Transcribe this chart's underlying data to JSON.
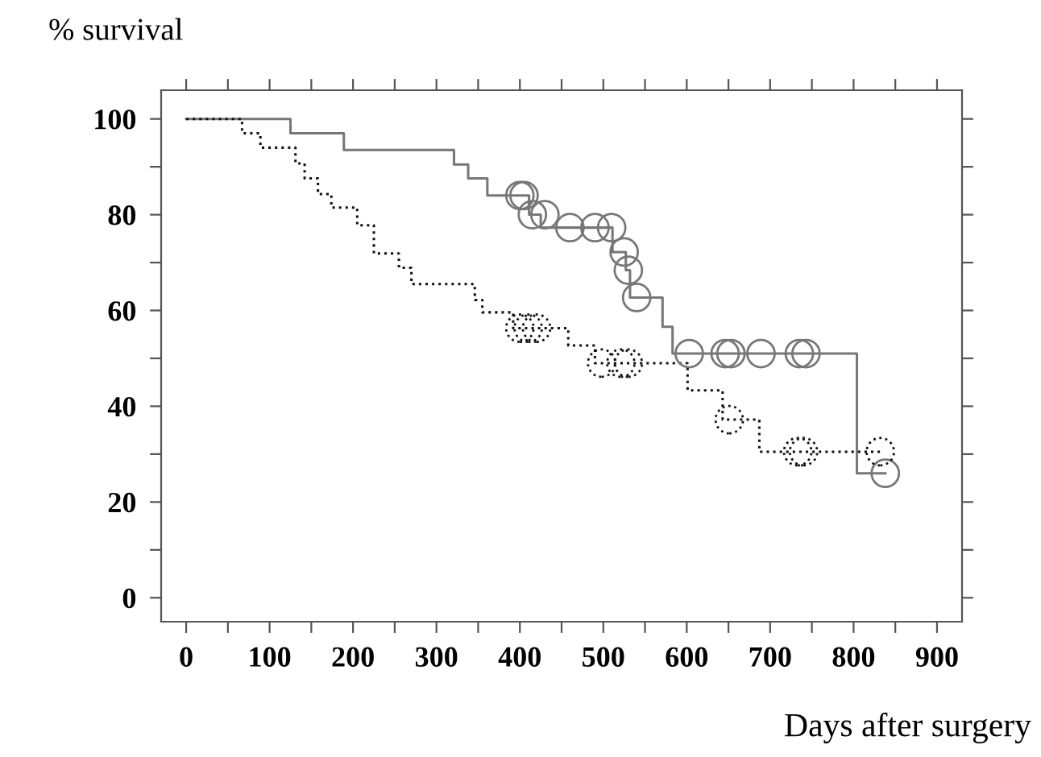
{
  "chart_data": {
    "type": "step",
    "xlabel": "Days after surgery",
    "ylabel": "% survival",
    "xlim": [
      -30,
      930
    ],
    "ylim": [
      -5,
      106
    ],
    "xticks": [
      0,
      {
        "value": 50,
        "label": null
      },
      100,
      {
        "value": 150,
        "label": null
      },
      200,
      {
        "value": 250,
        "label": null
      },
      300,
      {
        "value": 350,
        "label": null
      },
      400,
      {
        "value": 450,
        "label": null
      },
      500,
      {
        "value": 550,
        "label": null
      },
      600,
      {
        "value": 650,
        "label": null
      },
      700,
      {
        "value": 750,
        "label": null
      },
      800,
      {
        "value": 850,
        "label": null
      },
      900
    ],
    "yticks": [
      0,
      {
        "value": 10,
        "label": null
      },
      20,
      {
        "value": 30,
        "label": null
      },
      40,
      {
        "value": 50,
        "label": null
      },
      60,
      {
        "value": 70,
        "label": null
      },
      80,
      {
        "value": 90,
        "label": null
      },
      100
    ],
    "grid": false,
    "legend": false,
    "series": [
      {
        "color": "#777777",
        "line_style": "solid",
        "marker": "none",
        "x": [
          0,
          125,
          189,
          321,
          338,
          361,
          411,
          425,
          511,
          527,
          532,
          571,
          583,
          804,
          838
        ],
        "values": [
          100,
          97,
          93.5,
          90.5,
          87.6,
          84,
          80,
          77.3,
          72.2,
          68.4,
          62.7,
          56.6,
          51,
          26,
          26
        ]
      },
      {
        "color": "#111111",
        "line_style": "dotted",
        "marker": "none",
        "x": [
          0,
          67,
          89,
          131,
          142,
          158,
          174,
          205,
          225,
          255,
          270,
          346,
          355,
          392,
          458,
          490,
          601,
          643,
          687,
          832
        ],
        "values": [
          100,
          97,
          94,
          90.7,
          87.6,
          84.3,
          81.5,
          77.8,
          71.9,
          68.9,
          65.5,
          62.2,
          59.6,
          56.3,
          52.7,
          49,
          43.3,
          37.2,
          30.5,
          30.5
        ]
      },
      {
        "type": "scatter",
        "color": "#777777",
        "line_style": "solid",
        "marker": "circle",
        "x": [
          400,
          405,
          415,
          430,
          460,
          490,
          510,
          525,
          530,
          540,
          603,
          646,
          653,
          689,
          735,
          743,
          838
        ],
        "values": [
          84,
          84,
          80,
          80,
          77.3,
          77.3,
          77.3,
          72.2,
          68.4,
          62.7,
          51,
          51,
          51,
          51,
          51,
          51,
          26
        ]
      },
      {
        "type": "scatter",
        "color": "#111111",
        "line_style": "dotted",
        "marker": "circle",
        "x": [
          400,
          410,
          420,
          498,
          521,
          530,
          651,
          733,
          740,
          832
        ],
        "values": [
          56.3,
          56.3,
          56.3,
          49,
          49,
          49,
          37.2,
          30.5,
          30.5,
          30.5
        ]
      }
    ]
  }
}
